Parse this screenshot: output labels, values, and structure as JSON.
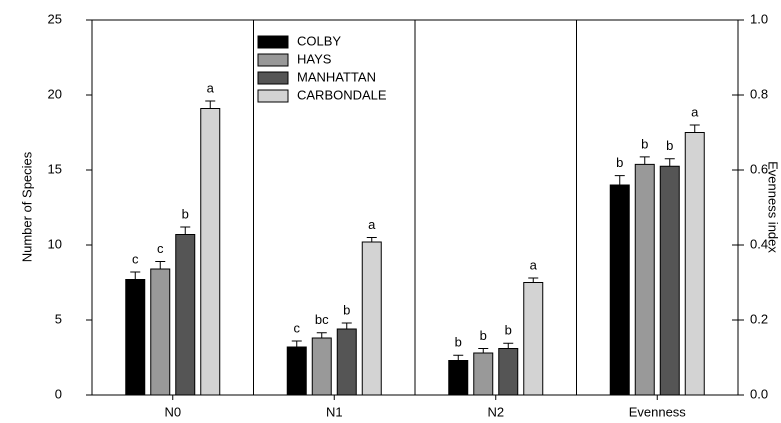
{
  "chart_data": {
    "type": "bar",
    "y_label": "Number of Species",
    "y2_label": "Evenness index",
    "categories": [
      "N0",
      "N1",
      "N2",
      "Evenness"
    ],
    "y2_category_index": 3,
    "series": [
      {
        "name": "COLBY",
        "color": "#000000",
        "values": [
          7.7,
          3.2,
          2.3,
          0.56
        ],
        "errors": [
          0.5,
          0.4,
          0.35,
          0.025
        ],
        "labels": [
          "c",
          "c",
          "b",
          "b"
        ]
      },
      {
        "name": "HAYS",
        "color": "#999999",
        "values": [
          8.4,
          3.8,
          2.8,
          0.615
        ],
        "errors": [
          0.5,
          0.35,
          0.3,
          0.02
        ],
        "labels": [
          "c",
          "bc",
          "b",
          "b"
        ]
      },
      {
        "name": "MANHATTAN",
        "color": "#555555",
        "values": [
          10.7,
          4.4,
          3.1,
          0.61
        ],
        "errors": [
          0.5,
          0.4,
          0.35,
          0.02
        ],
        "labels": [
          "b",
          "b",
          "b",
          "b"
        ]
      },
      {
        "name": "CARBONDALE",
        "color": "#d3d3d3",
        "values": [
          19.1,
          10.2,
          7.5,
          0.7
        ],
        "errors": [
          0.5,
          0.3,
          0.3,
          0.02
        ],
        "labels": [
          "a",
          "a",
          "a",
          "a"
        ]
      }
    ],
    "ylim": [
      0,
      25
    ],
    "yticks": [
      0,
      5,
      10,
      15,
      20,
      25
    ],
    "y2lim": [
      0,
      1
    ],
    "y2ticks": [
      {
        "value": 0,
        "label": "0.0"
      },
      {
        "value": 0.2,
        "label": "0.2"
      },
      {
        "value": 0.4,
        "label": "0.4"
      },
      {
        "value": 0.6,
        "label": "0.6"
      },
      {
        "value": 0.8,
        "label": "0.8"
      },
      {
        "value": 1,
        "label": "1.0"
      }
    ],
    "legend": "upper-left"
  }
}
